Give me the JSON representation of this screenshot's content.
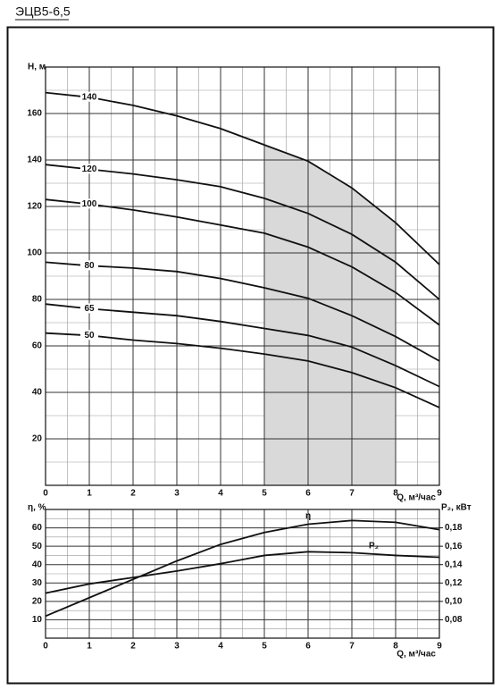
{
  "title": "ЭЦВ5-6,5",
  "chart_data": [
    {
      "type": "line",
      "ylabel": "H, м",
      "xlabel": "Q, м³/час",
      "x": [
        0,
        1,
        2,
        3,
        4,
        5,
        6,
        7,
        8,
        9
      ],
      "xlim": [
        0,
        9
      ],
      "xticks": [
        0,
        1,
        2,
        3,
        4,
        5,
        6,
        7,
        8,
        9
      ],
      "ylim": [
        0,
        180
      ],
      "yticks": [
        20,
        40,
        60,
        80,
        100,
        120,
        140,
        160
      ],
      "xgrid_minor": [
        0.5,
        1.5,
        2.5,
        3.5,
        4.5,
        5.5,
        6.5,
        7.5,
        8.5
      ],
      "ygrid_minor": [
        10,
        30,
        50,
        70,
        90,
        110,
        130,
        150,
        170
      ],
      "grid": true,
      "shaded_range": [
        5,
        8
      ],
      "shade_color": "#d9d9d9",
      "series": [
        {
          "name": "140",
          "color": "#111111",
          "values": [
            169,
            167,
            163.5,
            159,
            153.5,
            146.5,
            139.5,
            128,
            113,
            95
          ]
        },
        {
          "name": "120",
          "color": "#111111",
          "values": [
            138,
            136,
            134,
            131.5,
            128.5,
            123.5,
            117,
            108,
            96,
            80
          ]
        },
        {
          "name": "100",
          "color": "#111111",
          "values": [
            123,
            121,
            118.5,
            115.5,
            112,
            108.5,
            102.5,
            94,
            83,
            69
          ]
        },
        {
          "name": "80",
          "color": "#111111",
          "values": [
            96,
            94.5,
            93.5,
            92,
            89,
            85,
            80.5,
            73,
            64,
            53.5
          ]
        },
        {
          "name": "65",
          "color": "#111111",
          "values": [
            78,
            76,
            74.5,
            73,
            70.5,
            67.5,
            64.5,
            59.5,
            51.5,
            42.5
          ]
        },
        {
          "name": "50",
          "color": "#111111",
          "values": [
            65.5,
            64.5,
            62.5,
            61,
            59,
            56.5,
            53.5,
            48.5,
            42,
            33.5
          ]
        }
      ]
    },
    {
      "type": "line",
      "ylabel": "η, %",
      "y2label": "P₂, кВт",
      "xlabel": "Q, м³/час",
      "x": [
        0,
        1,
        2,
        3,
        4,
        5,
        6,
        7,
        8,
        9
      ],
      "xlim": [
        0,
        9
      ],
      "xticks": [
        0,
        1,
        2,
        3,
        4,
        5,
        6,
        7,
        8,
        9
      ],
      "ylim": [
        0,
        70
      ],
      "yticks": [
        10,
        20,
        30,
        40,
        50,
        60
      ],
      "y2lim": [
        0.06,
        0.2
      ],
      "y2ticks": [
        {
          "value": 0.08,
          "label": "0,08"
        },
        {
          "value": 0.1,
          "label": "0,10"
        },
        {
          "value": 0.12,
          "label": "0,12"
        },
        {
          "value": 0.14,
          "label": "0,14"
        },
        {
          "value": 0.16,
          "label": "0,16"
        },
        {
          "value": 0.18,
          "label": "0,18"
        }
      ],
      "xgrid_minor": [
        0.5,
        1.5,
        2.5,
        3.5,
        4.5,
        5.5,
        6.5,
        7.5,
        8.5
      ],
      "ygrid_minor": [
        5,
        15,
        25,
        35,
        45,
        55,
        65
      ],
      "grid": true,
      "series": [
        {
          "name": "η",
          "color": "#111111",
          "values": [
            12,
            22,
            32,
            42,
            51,
            57.5,
            62,
            64,
            63,
            59
          ]
        },
        {
          "name": "P₂",
          "color": "#111111",
          "axis": "y2",
          "values": [
            0.109,
            0.119,
            0.126,
            0.133,
            0.141,
            0.15,
            0.154,
            0.153,
            0.15,
            0.148
          ]
        }
      ]
    }
  ]
}
